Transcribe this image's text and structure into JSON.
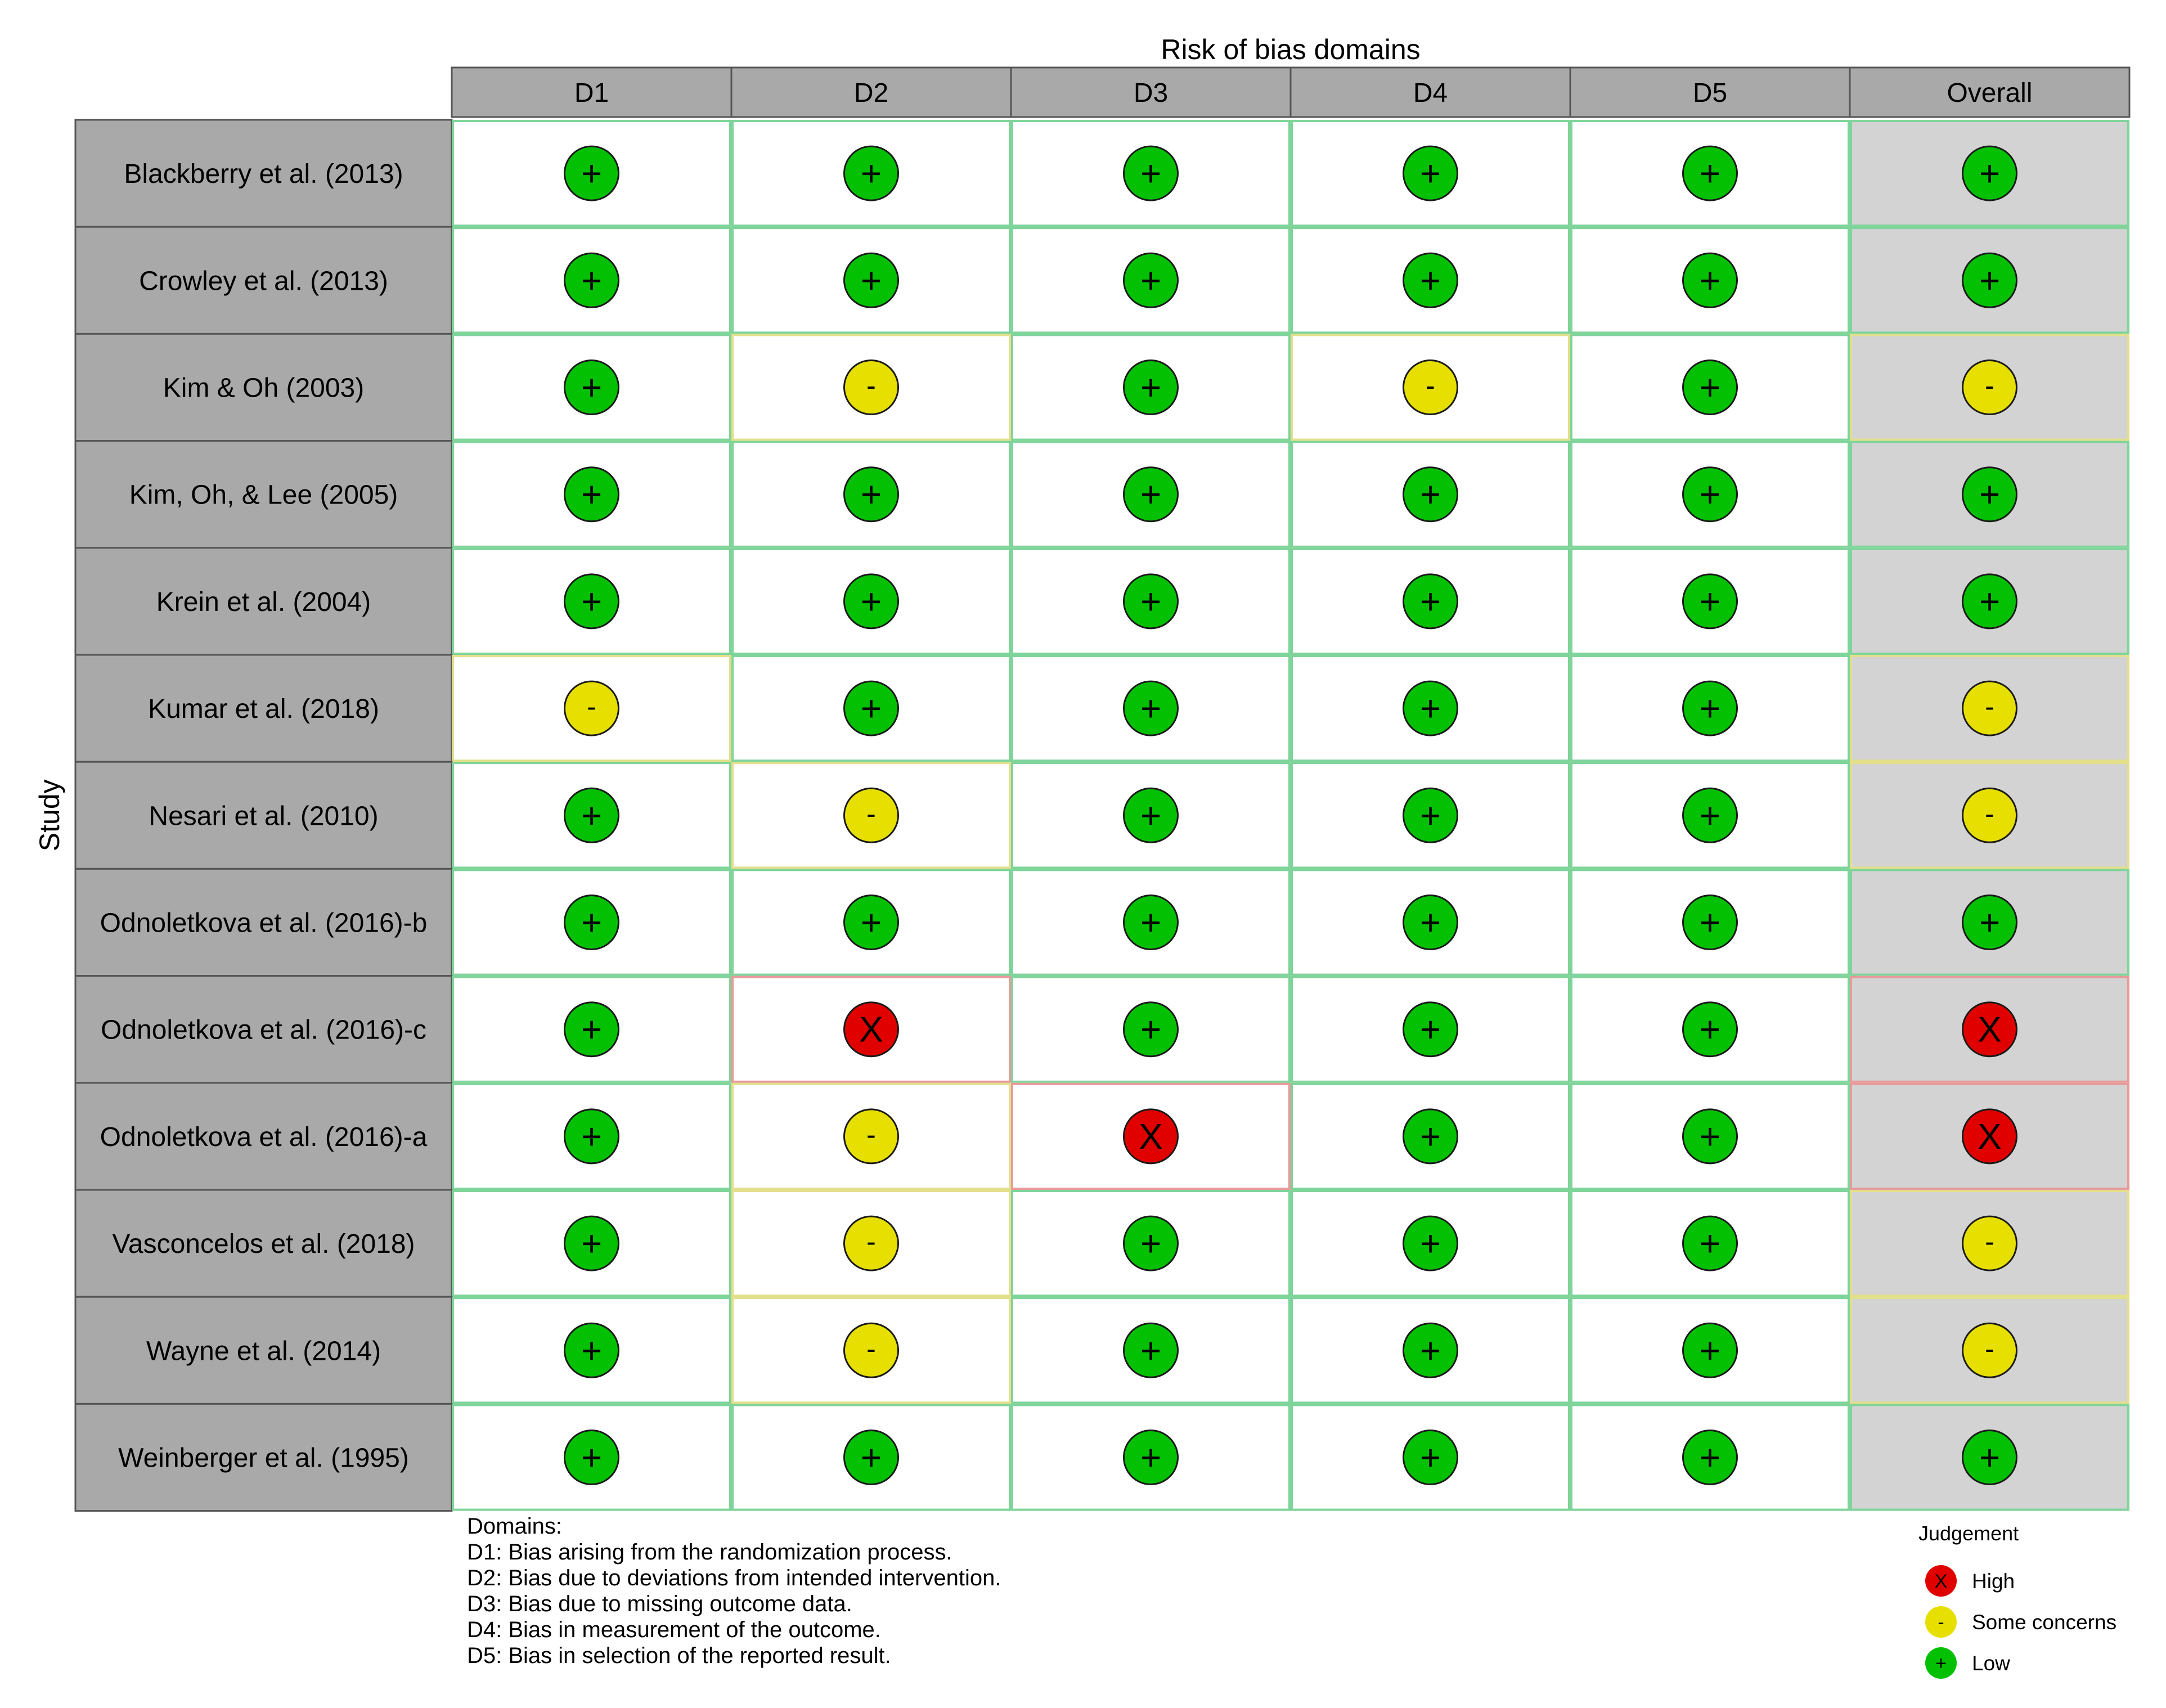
{
  "chart_data": {
    "type": "table",
    "title": "Risk of bias domains",
    "ylabel": "Study",
    "columns": [
      "D1",
      "D2",
      "D3",
      "D4",
      "D5",
      "Overall"
    ],
    "rows": [
      {
        "study": "Blackberry et al. (2013)",
        "judgements": [
          "+",
          "+",
          "+",
          "+",
          "+",
          "+"
        ]
      },
      {
        "study": "Crowley et al. (2013)",
        "judgements": [
          "+",
          "+",
          "+",
          "+",
          "+",
          "+"
        ]
      },
      {
        "study": "Kim & Oh (2003)",
        "judgements": [
          "+",
          "-",
          "+",
          "-",
          "+",
          "-"
        ]
      },
      {
        "study": "Kim, Oh, & Lee (2005)",
        "judgements": [
          "+",
          "+",
          "+",
          "+",
          "+",
          "+"
        ]
      },
      {
        "study": "Krein et al. (2004)",
        "judgements": [
          "+",
          "+",
          "+",
          "+",
          "+",
          "+"
        ]
      },
      {
        "study": "Kumar et al. (2018)",
        "judgements": [
          "-",
          "+",
          "+",
          "+",
          "+",
          "-"
        ]
      },
      {
        "study": "Nesari et al. (2010)",
        "judgements": [
          "+",
          "-",
          "+",
          "+",
          "+",
          "-"
        ]
      },
      {
        "study": "Odnoletkova et al. (2016)-b",
        "judgements": [
          "+",
          "+",
          "+",
          "+",
          "+",
          "+"
        ]
      },
      {
        "study": "Odnoletkova et al. (2016)-c",
        "judgements": [
          "+",
          "X",
          "+",
          "+",
          "+",
          "X"
        ]
      },
      {
        "study": "Odnoletkova et al. (2016)-a",
        "judgements": [
          "+",
          "-",
          "X",
          "+",
          "+",
          "X"
        ]
      },
      {
        "study": "Vasconcelos et al. (2018)",
        "judgements": [
          "+",
          "-",
          "+",
          "+",
          "+",
          "-"
        ]
      },
      {
        "study": "Wayne et al. (2014)",
        "judgements": [
          "+",
          "-",
          "+",
          "+",
          "+",
          "-"
        ]
      },
      {
        "study": "Weinberger et al. (1995)",
        "judgements": [
          "+",
          "+",
          "+",
          "+",
          "+",
          "+"
        ]
      }
    ],
    "symbols": {
      "High": "X",
      "Some concerns": "-",
      "Low": "+"
    },
    "colors": {
      "High": "#e00000",
      "Some concerns": "#e6df00",
      "Low": "#03c003",
      "header_fill": "#a9a9a9",
      "overall_fill": "#d3d3d3"
    }
  },
  "domains": {
    "heading": "Domains:",
    "lines": [
      "D1: Bias arising from the randomization process.",
      "D2: Bias due to deviations from intended intervention.",
      "D3: Bias due to missing outcome data.",
      "D4: Bias in measurement of the outcome.",
      "D5: Bias in selection of the reported result."
    ]
  },
  "legend": {
    "title": "Judgement",
    "items": [
      {
        "symbol": "X",
        "label": "High",
        "color": "#e00000"
      },
      {
        "symbol": "-",
        "label": "Some concerns",
        "color": "#e6df00"
      },
      {
        "symbol": "+",
        "label": "Low",
        "color": "#03c003"
      }
    ]
  }
}
